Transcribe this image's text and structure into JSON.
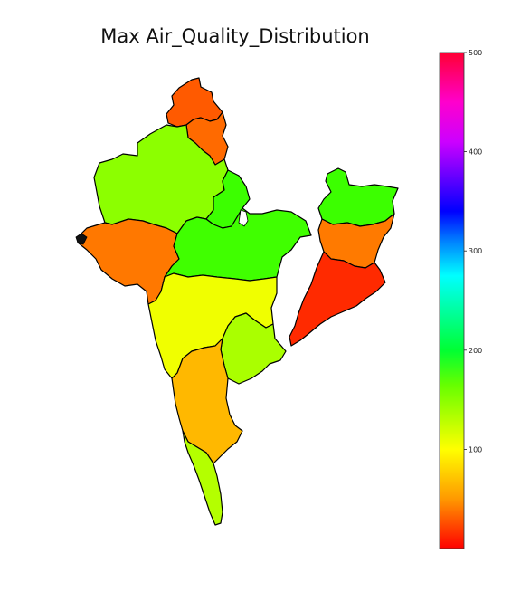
{
  "chart_data": {
    "type": "choropleth",
    "title": "Max Air_Quality_Distribution",
    "colormap": "hsv-like: red (low) → orange → yellow → green → cyan → blue → purple → magenta → red (high)",
    "colorbar": {
      "min": 0,
      "max": 500,
      "ticks": [
        {
          "value": 100,
          "label": "100"
        },
        {
          "value": 200,
          "label": "200"
        },
        {
          "value": 300,
          "label": "300"
        },
        {
          "value": 400,
          "label": "400"
        },
        {
          "value": 500,
          "label": "500"
        }
      ],
      "orientation": "vertical",
      "placement": "right"
    },
    "regions": [
      {
        "value": 30,
        "color": "#ff5a00"
      },
      {
        "value": 45,
        "color": "#ff6a00"
      },
      {
        "value": 130,
        "color": "#8cff00"
      },
      {
        "value": 150,
        "color": "#3cff00"
      },
      {
        "value": 45,
        "color": "#ff7800"
      },
      {
        "value": 140,
        "color": "#40ff00"
      },
      {
        "value": 150,
        "color": "#3cff00"
      },
      {
        "value": 55,
        "color": "#ff7a00"
      },
      {
        "value": 15,
        "color": "#ff2a00"
      },
      {
        "value": 95,
        "color": "#f0ff00"
      },
      {
        "value": 125,
        "color": "#aaff00"
      },
      {
        "value": 70,
        "color": "#ffb800"
      },
      {
        "value": 120,
        "color": "#b4ff00"
      }
    ]
  }
}
